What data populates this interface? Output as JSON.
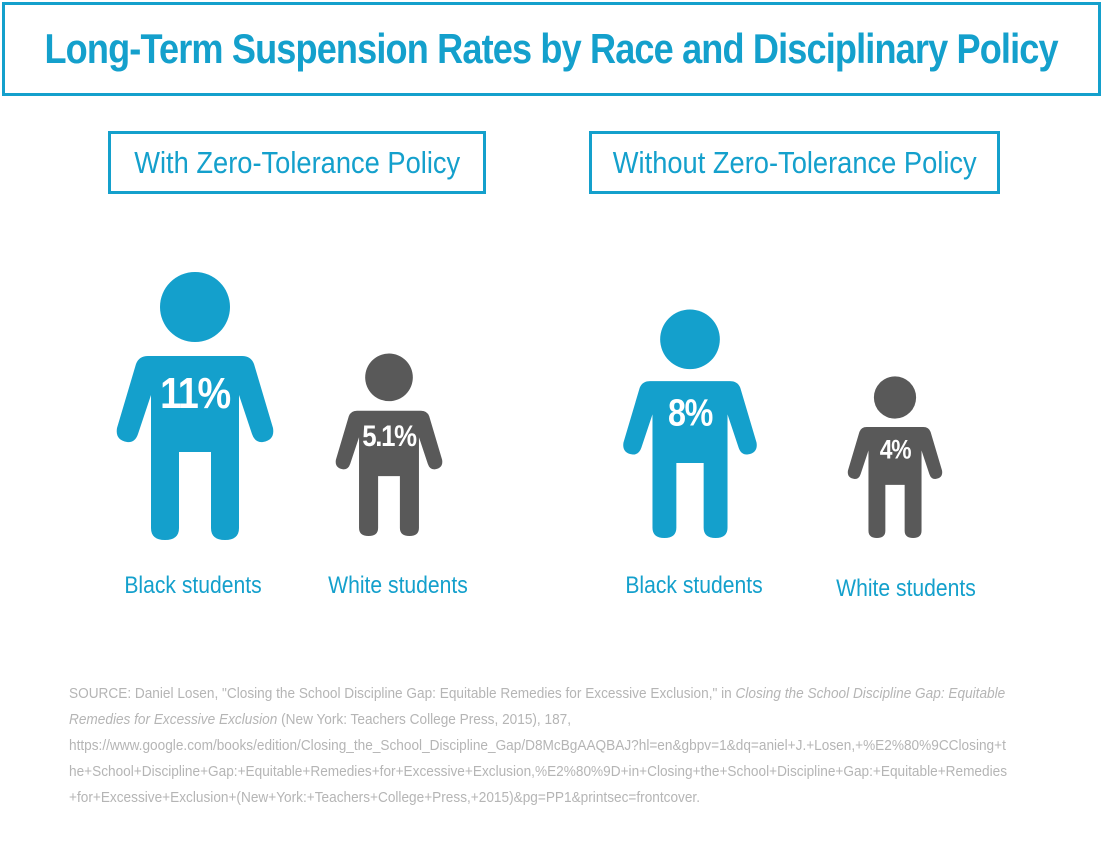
{
  "title": "Long-Term Suspension Rates by Race and Disciplinary Policy",
  "panels": [
    {
      "label": "With Zero-Tolerance Policy"
    },
    {
      "label": "Without Zero-Tolerance Policy"
    }
  ],
  "colors": {
    "accent": "#14a0cc",
    "black_students": "#14a0cc",
    "white_students": "#595959",
    "source_text": "#b5b5b5"
  },
  "chart_data": {
    "type": "bar",
    "title": "Long-Term Suspension Rates by Race and Disciplinary Policy",
    "unit": "%",
    "groups": [
      {
        "label": "With Zero-Tolerance Policy",
        "items": [
          {
            "category": "Black students",
            "value": 11,
            "label": "11%",
            "color": "#14a0cc"
          },
          {
            "category": "White students",
            "value": 5.1,
            "label": "5.1%",
            "color": "#595959"
          }
        ]
      },
      {
        "label": "Without Zero-Tolerance Policy",
        "items": [
          {
            "category": "Black students",
            "value": 8,
            "label": "8%",
            "color": "#14a0cc"
          },
          {
            "category": "White students",
            "value": 4,
            "label": "4%",
            "color": "#595959"
          }
        ]
      }
    ]
  },
  "source": {
    "prefix": "SOURCE: Daniel Losen, \"Closing the School Discipline Gap: Equitable Remedies for Excessive Exclusion,\" in ",
    "book_title": "Closing the School Discipline Gap: Equitable Remedies for Excessive Exclusion",
    "suffix": " (New York: Teachers College Press, 2015), 187,",
    "url": "https://www.google.com/books/edition/Closing_the_School_Discipline_Gap/D8McBgAAQBAJ?hl=en&gbpv=1&dq=aniel+J.+Losen,+%E2%80%9CClosing+the+School+Discipline+Gap:+Equitable+Remedies+for+Excessive+Exclusion,%E2%80%9D+in+Closing+the+School+Discipline+Gap:+Equitable+Remedies+for+Excessive+Exclusion+(New+York:+Teachers+College+Press,+2015)&pg=PP1&printsec=frontcover."
  }
}
